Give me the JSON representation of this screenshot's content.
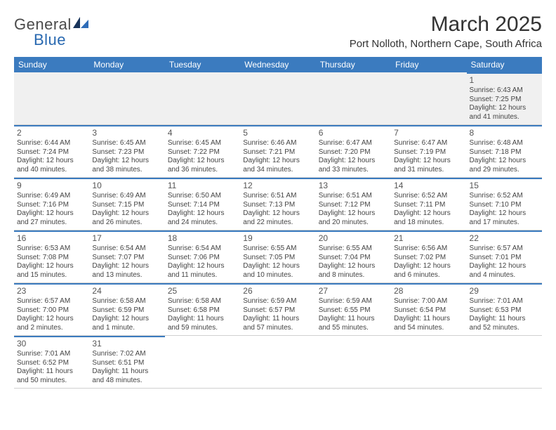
{
  "logo": {
    "part1": "General",
    "part2": "Blue"
  },
  "title": "March 2025",
  "location": "Port Nolloth, Northern Cape, South Africa",
  "colors": {
    "header_bg": "#3b7bbf",
    "accent_line": "#3b7bbf",
    "text": "#333333",
    "muted": "#555555",
    "logo_gray": "#4a4a4a",
    "logo_blue": "#2868b0",
    "row_alt": "#f0f0f0",
    "border": "#d0d0d0",
    "bg": "#ffffff"
  },
  "daynames": [
    "Sunday",
    "Monday",
    "Tuesday",
    "Wednesday",
    "Thursday",
    "Friday",
    "Saturday"
  ],
  "weeks": [
    [
      null,
      null,
      null,
      null,
      null,
      null,
      {
        "n": "1",
        "sr": "Sunrise: 6:43 AM",
        "ss": "Sunset: 7:25 PM",
        "dl1": "Daylight: 12 hours",
        "dl2": "and 41 minutes."
      }
    ],
    [
      {
        "n": "2",
        "sr": "Sunrise: 6:44 AM",
        "ss": "Sunset: 7:24 PM",
        "dl1": "Daylight: 12 hours",
        "dl2": "and 40 minutes."
      },
      {
        "n": "3",
        "sr": "Sunrise: 6:45 AM",
        "ss": "Sunset: 7:23 PM",
        "dl1": "Daylight: 12 hours",
        "dl2": "and 38 minutes."
      },
      {
        "n": "4",
        "sr": "Sunrise: 6:45 AM",
        "ss": "Sunset: 7:22 PM",
        "dl1": "Daylight: 12 hours",
        "dl2": "and 36 minutes."
      },
      {
        "n": "5",
        "sr": "Sunrise: 6:46 AM",
        "ss": "Sunset: 7:21 PM",
        "dl1": "Daylight: 12 hours",
        "dl2": "and 34 minutes."
      },
      {
        "n": "6",
        "sr": "Sunrise: 6:47 AM",
        "ss": "Sunset: 7:20 PM",
        "dl1": "Daylight: 12 hours",
        "dl2": "and 33 minutes."
      },
      {
        "n": "7",
        "sr": "Sunrise: 6:47 AM",
        "ss": "Sunset: 7:19 PM",
        "dl1": "Daylight: 12 hours",
        "dl2": "and 31 minutes."
      },
      {
        "n": "8",
        "sr": "Sunrise: 6:48 AM",
        "ss": "Sunset: 7:18 PM",
        "dl1": "Daylight: 12 hours",
        "dl2": "and 29 minutes."
      }
    ],
    [
      {
        "n": "9",
        "sr": "Sunrise: 6:49 AM",
        "ss": "Sunset: 7:16 PM",
        "dl1": "Daylight: 12 hours",
        "dl2": "and 27 minutes."
      },
      {
        "n": "10",
        "sr": "Sunrise: 6:49 AM",
        "ss": "Sunset: 7:15 PM",
        "dl1": "Daylight: 12 hours",
        "dl2": "and 26 minutes."
      },
      {
        "n": "11",
        "sr": "Sunrise: 6:50 AM",
        "ss": "Sunset: 7:14 PM",
        "dl1": "Daylight: 12 hours",
        "dl2": "and 24 minutes."
      },
      {
        "n": "12",
        "sr": "Sunrise: 6:51 AM",
        "ss": "Sunset: 7:13 PM",
        "dl1": "Daylight: 12 hours",
        "dl2": "and 22 minutes."
      },
      {
        "n": "13",
        "sr": "Sunrise: 6:51 AM",
        "ss": "Sunset: 7:12 PM",
        "dl1": "Daylight: 12 hours",
        "dl2": "and 20 minutes."
      },
      {
        "n": "14",
        "sr": "Sunrise: 6:52 AM",
        "ss": "Sunset: 7:11 PM",
        "dl1": "Daylight: 12 hours",
        "dl2": "and 18 minutes."
      },
      {
        "n": "15",
        "sr": "Sunrise: 6:52 AM",
        "ss": "Sunset: 7:10 PM",
        "dl1": "Daylight: 12 hours",
        "dl2": "and 17 minutes."
      }
    ],
    [
      {
        "n": "16",
        "sr": "Sunrise: 6:53 AM",
        "ss": "Sunset: 7:08 PM",
        "dl1": "Daylight: 12 hours",
        "dl2": "and 15 minutes."
      },
      {
        "n": "17",
        "sr": "Sunrise: 6:54 AM",
        "ss": "Sunset: 7:07 PM",
        "dl1": "Daylight: 12 hours",
        "dl2": "and 13 minutes."
      },
      {
        "n": "18",
        "sr": "Sunrise: 6:54 AM",
        "ss": "Sunset: 7:06 PM",
        "dl1": "Daylight: 12 hours",
        "dl2": "and 11 minutes."
      },
      {
        "n": "19",
        "sr": "Sunrise: 6:55 AM",
        "ss": "Sunset: 7:05 PM",
        "dl1": "Daylight: 12 hours",
        "dl2": "and 10 minutes."
      },
      {
        "n": "20",
        "sr": "Sunrise: 6:55 AM",
        "ss": "Sunset: 7:04 PM",
        "dl1": "Daylight: 12 hours",
        "dl2": "and 8 minutes."
      },
      {
        "n": "21",
        "sr": "Sunrise: 6:56 AM",
        "ss": "Sunset: 7:02 PM",
        "dl1": "Daylight: 12 hours",
        "dl2": "and 6 minutes."
      },
      {
        "n": "22",
        "sr": "Sunrise: 6:57 AM",
        "ss": "Sunset: 7:01 PM",
        "dl1": "Daylight: 12 hours",
        "dl2": "and 4 minutes."
      }
    ],
    [
      {
        "n": "23",
        "sr": "Sunrise: 6:57 AM",
        "ss": "Sunset: 7:00 PM",
        "dl1": "Daylight: 12 hours",
        "dl2": "and 2 minutes."
      },
      {
        "n": "24",
        "sr": "Sunrise: 6:58 AM",
        "ss": "Sunset: 6:59 PM",
        "dl1": "Daylight: 12 hours",
        "dl2": "and 1 minute."
      },
      {
        "n": "25",
        "sr": "Sunrise: 6:58 AM",
        "ss": "Sunset: 6:58 PM",
        "dl1": "Daylight: 11 hours",
        "dl2": "and 59 minutes."
      },
      {
        "n": "26",
        "sr": "Sunrise: 6:59 AM",
        "ss": "Sunset: 6:57 PM",
        "dl1": "Daylight: 11 hours",
        "dl2": "and 57 minutes."
      },
      {
        "n": "27",
        "sr": "Sunrise: 6:59 AM",
        "ss": "Sunset: 6:55 PM",
        "dl1": "Daylight: 11 hours",
        "dl2": "and 55 minutes."
      },
      {
        "n": "28",
        "sr": "Sunrise: 7:00 AM",
        "ss": "Sunset: 6:54 PM",
        "dl1": "Daylight: 11 hours",
        "dl2": "and 54 minutes."
      },
      {
        "n": "29",
        "sr": "Sunrise: 7:01 AM",
        "ss": "Sunset: 6:53 PM",
        "dl1": "Daylight: 11 hours",
        "dl2": "and 52 minutes."
      }
    ],
    [
      {
        "n": "30",
        "sr": "Sunrise: 7:01 AM",
        "ss": "Sunset: 6:52 PM",
        "dl1": "Daylight: 11 hours",
        "dl2": "and 50 minutes."
      },
      {
        "n": "31",
        "sr": "Sunrise: 7:02 AM",
        "ss": "Sunset: 6:51 PM",
        "dl1": "Daylight: 11 hours",
        "dl2": "and 48 minutes."
      },
      null,
      null,
      null,
      null,
      null
    ]
  ]
}
